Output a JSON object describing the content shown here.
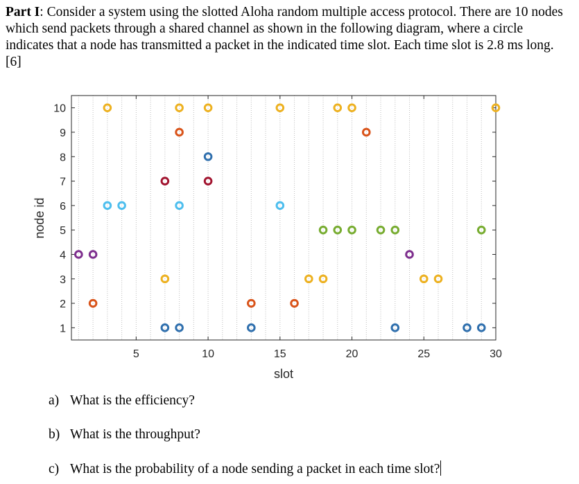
{
  "problem": {
    "part_label": "Part I",
    "intro": ": Consider a system using the slotted Aloha random multiple access protocol. There are 10 nodes which send packets through a shared channel as shown in the following diagram, where a circle indicates that a node has transmitted a packet in the indicated time slot. Each time slot is 2.8 ms long. [6]"
  },
  "questions": [
    {
      "label": "a)",
      "text": "What is the efficiency?"
    },
    {
      "label": "b)",
      "text": "What is the throughput?"
    },
    {
      "label": "c)",
      "text": "What is the probability of a node sending a packet in each time slot?"
    }
  ],
  "chart_data": {
    "type": "scatter",
    "xlabel": "slot",
    "ylabel": "node id",
    "xlim": [
      0.5,
      30
    ],
    "ylim": [
      0.5,
      10.5
    ],
    "xticks": [
      5,
      10,
      15,
      20,
      25,
      30
    ],
    "yticks": [
      1,
      2,
      3,
      4,
      5,
      6,
      7,
      8,
      9,
      10
    ],
    "grid": "vertical dotted line at every slot",
    "node_colors": {
      "1": "#2f6fad",
      "2": "#d95319",
      "3": "#edb120",
      "4": "#7e2f8e",
      "5": "#77ac30",
      "6": "#4dbeee",
      "7": "#a2142f",
      "8": "#2f6fad",
      "9": "#d95319",
      "10": "#edb120"
    },
    "points": [
      {
        "node": 10,
        "slots": [
          3,
          8,
          10,
          15,
          19,
          20,
          30
        ]
      },
      {
        "node": 9,
        "slots": [
          8,
          21
        ]
      },
      {
        "node": 8,
        "slots": [
          10
        ]
      },
      {
        "node": 7,
        "slots": [
          7,
          10
        ]
      },
      {
        "node": 6,
        "slots": [
          3,
          4,
          8,
          15
        ]
      },
      {
        "node": 5,
        "slots": [
          18,
          19,
          20,
          22,
          23,
          29
        ]
      },
      {
        "node": 4,
        "slots": [
          1,
          2,
          24
        ]
      },
      {
        "node": 3,
        "slots": [
          7,
          17,
          18,
          25,
          26
        ]
      },
      {
        "node": 2,
        "slots": [
          2,
          13,
          16
        ]
      },
      {
        "node": 1,
        "slots": [
          7,
          8,
          13,
          23,
          28,
          29
        ]
      }
    ]
  }
}
